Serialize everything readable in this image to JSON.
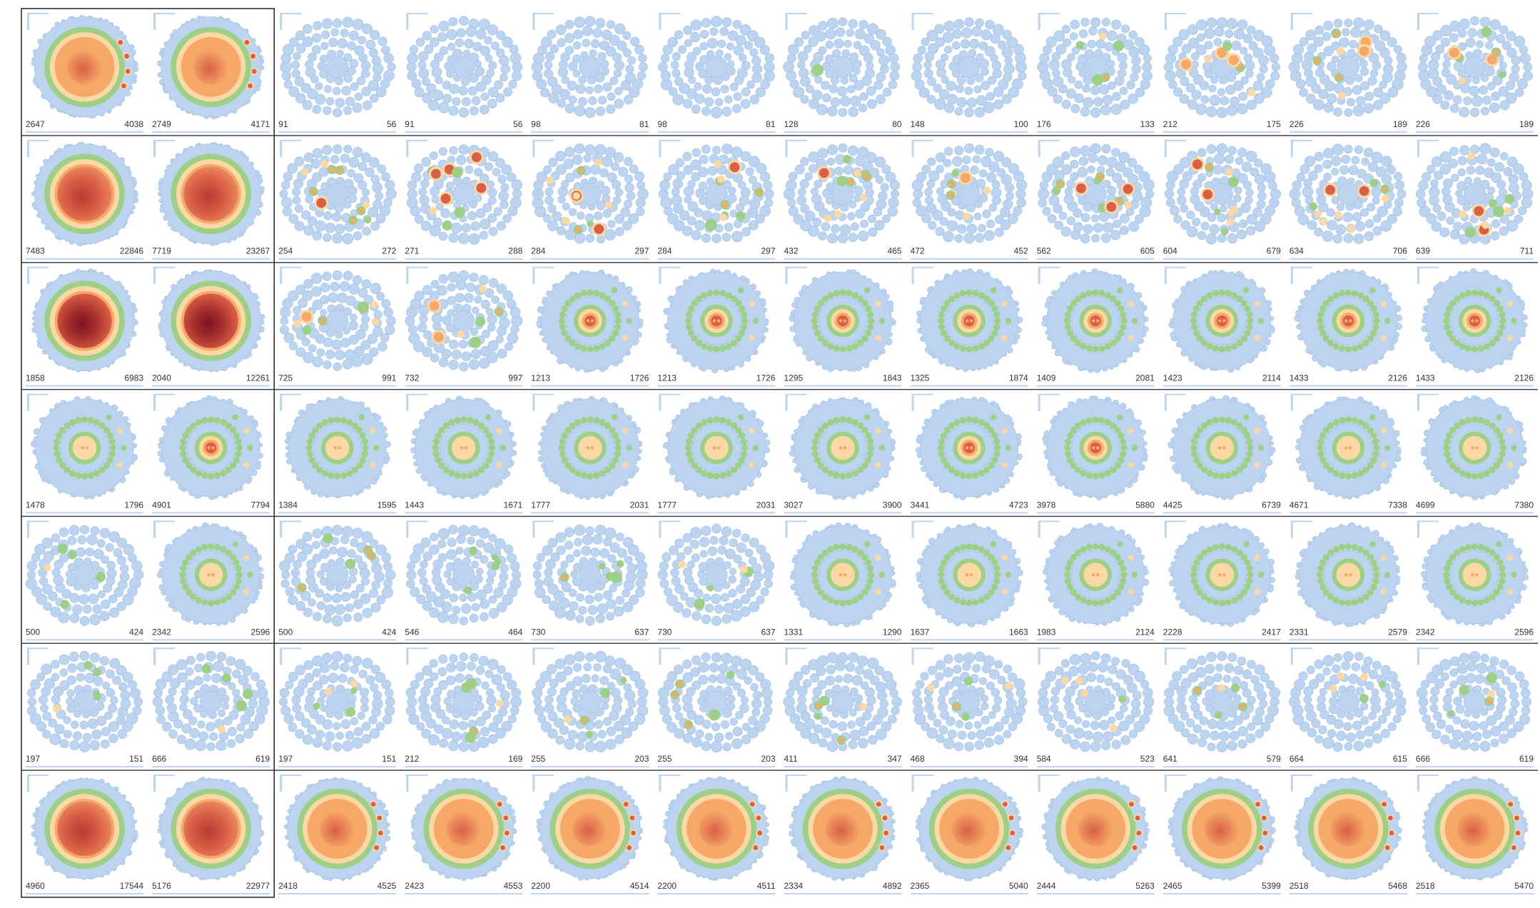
{
  "colors": {
    "blue": "#bcd4ef",
    "blue_stroke": "#a8c4e6",
    "green": "#9dd086",
    "peach": "#fbd8a4",
    "orange": "#f6a868",
    "red": "#d95f46",
    "darkred": "#a32c2c",
    "frame": "#222222",
    "separator": "#444444"
  },
  "rows": [
    {
      "cells": [
        {
          "style": "big",
          "level": 1,
          "left": "2647",
          "right": "4038"
        },
        {
          "style": "big",
          "level": 1,
          "left": "2749",
          "right": "4171"
        },
        {
          "style": "pack",
          "level": 0,
          "left": "91",
          "right": "56"
        },
        {
          "style": "pack",
          "level": 0,
          "left": "91",
          "right": "56"
        },
        {
          "style": "pack",
          "level": 0,
          "left": "98",
          "right": "81"
        },
        {
          "style": "pack",
          "level": 0,
          "left": "98",
          "right": "81"
        },
        {
          "style": "pack",
          "level": 1,
          "left": "128",
          "right": "80"
        },
        {
          "style": "pack",
          "level": 0,
          "left": "148",
          "right": "100"
        },
        {
          "style": "pack",
          "level": 2,
          "left": "176",
          "right": "133"
        },
        {
          "style": "pack",
          "level": 3,
          "left": "212",
          "right": "175"
        },
        {
          "style": "pack",
          "level": 3,
          "left": "226",
          "right": "189"
        },
        {
          "style": "pack",
          "level": 3,
          "left": "226",
          "right": "189"
        }
      ]
    },
    {
      "cells": [
        {
          "style": "big",
          "level": 3,
          "left": "7483",
          "right": "22846"
        },
        {
          "style": "big",
          "level": 3,
          "left": "7719",
          "right": "23267"
        },
        {
          "style": "pack",
          "level": 4,
          "left": "254",
          "right": "272"
        },
        {
          "style": "pack",
          "level": 4,
          "left": "271",
          "right": "288"
        },
        {
          "style": "pack",
          "level": 4,
          "left": "284",
          "right": "297"
        },
        {
          "style": "pack",
          "level": 4,
          "left": "284",
          "right": "297"
        },
        {
          "style": "pack",
          "level": 4,
          "left": "432",
          "right": "465"
        },
        {
          "style": "pack",
          "level": 3,
          "left": "472",
          "right": "452"
        },
        {
          "style": "pack",
          "level": 4,
          "left": "562",
          "right": "605"
        },
        {
          "style": "pack",
          "level": 4,
          "left": "604",
          "right": "679"
        },
        {
          "style": "pack",
          "level": 4,
          "left": "634",
          "right": "706"
        },
        {
          "style": "pack",
          "level": 4,
          "left": "639",
          "right": "711"
        }
      ]
    },
    {
      "cells": [
        {
          "style": "big",
          "level": 4,
          "left": "1858",
          "right": "6983"
        },
        {
          "style": "big",
          "level": 4,
          "left": "2040",
          "right": "12261"
        },
        {
          "style": "pack",
          "level": 3,
          "left": "725",
          "right": "991"
        },
        {
          "style": "pack",
          "level": 3,
          "left": "732",
          "right": "997"
        },
        {
          "style": "ring",
          "level": 2,
          "left": "1213",
          "right": "1726"
        },
        {
          "style": "ring",
          "level": 2,
          "left": "1213",
          "right": "1726"
        },
        {
          "style": "ring",
          "level": 2,
          "left": "1295",
          "right": "1843"
        },
        {
          "style": "ring",
          "level": 2,
          "left": "1325",
          "right": "1874"
        },
        {
          "style": "ring",
          "level": 2,
          "left": "1409",
          "right": "2081"
        },
        {
          "style": "ring",
          "level": 2,
          "left": "1423",
          "right": "2114"
        },
        {
          "style": "ring",
          "level": 2,
          "left": "1433",
          "right": "2126"
        },
        {
          "style": "ring",
          "level": 2,
          "left": "1433",
          "right": "2126"
        }
      ]
    },
    {
      "cells": [
        {
          "style": "ring",
          "level": 1,
          "left": "1478",
          "right": "1796"
        },
        {
          "style": "ring",
          "level": 2,
          "left": "4901",
          "right": "7794"
        },
        {
          "style": "ring",
          "level": 1,
          "left": "1384",
          "right": "1595"
        },
        {
          "style": "ring",
          "level": 1,
          "left": "1443",
          "right": "1671"
        },
        {
          "style": "ring",
          "level": 1,
          "left": "1777",
          "right": "2031"
        },
        {
          "style": "ring",
          "level": 1,
          "left": "1777",
          "right": "2031"
        },
        {
          "style": "ring",
          "level": 1,
          "left": "3027",
          "right": "3900"
        },
        {
          "style": "ring",
          "level": 2,
          "left": "3441",
          "right": "4723"
        },
        {
          "style": "ring",
          "level": 2,
          "left": "3978",
          "right": "5880"
        },
        {
          "style": "ring",
          "level": 1,
          "left": "4425",
          "right": "6739"
        },
        {
          "style": "ring",
          "level": 1,
          "left": "4671",
          "right": "7338"
        },
        {
          "style": "ring",
          "level": 1,
          "left": "4699",
          "right": "7380"
        }
      ]
    },
    {
      "cells": [
        {
          "style": "pack",
          "level": 2,
          "left": "500",
          "right": "424"
        },
        {
          "style": "ring",
          "level": 1,
          "left": "2342",
          "right": "2596"
        },
        {
          "style": "pack",
          "level": 2,
          "left": "500",
          "right": "424"
        },
        {
          "style": "pack",
          "level": 2,
          "left": "546",
          "right": "464"
        },
        {
          "style": "pack",
          "level": 2,
          "left": "730",
          "right": "637"
        },
        {
          "style": "pack",
          "level": 2,
          "left": "730",
          "right": "637"
        },
        {
          "style": "ring",
          "level": 1,
          "left": "1331",
          "right": "1290"
        },
        {
          "style": "ring",
          "level": 1,
          "left": "1637",
          "right": "1663"
        },
        {
          "style": "ring",
          "level": 1,
          "left": "1983",
          "right": "2124"
        },
        {
          "style": "ring",
          "level": 1,
          "left": "2228",
          "right": "2417"
        },
        {
          "style": "ring",
          "level": 1,
          "left": "2331",
          "right": "2579"
        },
        {
          "style": "ring",
          "level": 1,
          "left": "2342",
          "right": "2596"
        }
      ]
    },
    {
      "cells": [
        {
          "style": "pack",
          "level": 2,
          "left": "197",
          "right": "151"
        },
        {
          "style": "pack",
          "level": 2,
          "left": "666",
          "right": "619"
        },
        {
          "style": "pack",
          "level": 2,
          "left": "197",
          "right": "151"
        },
        {
          "style": "pack",
          "level": 2,
          "left": "212",
          "right": "169"
        },
        {
          "style": "pack",
          "level": 2,
          "left": "255",
          "right": "203"
        },
        {
          "style": "pack",
          "level": 2,
          "left": "255",
          "right": "203"
        },
        {
          "style": "pack",
          "level": 2,
          "left": "411",
          "right": "347"
        },
        {
          "style": "pack",
          "level": 2,
          "left": "468",
          "right": "394"
        },
        {
          "style": "pack",
          "level": 2,
          "left": "584",
          "right": "523"
        },
        {
          "style": "pack",
          "level": 2,
          "left": "641",
          "right": "579"
        },
        {
          "style": "pack",
          "level": 2,
          "left": "664",
          "right": "615"
        },
        {
          "style": "pack",
          "level": 2,
          "left": "666",
          "right": "619"
        }
      ]
    },
    {
      "cells": [
        {
          "style": "big",
          "level": 3,
          "left": "4960",
          "right": "17544"
        },
        {
          "style": "big",
          "level": 3,
          "left": "5176",
          "right": "22977"
        },
        {
          "style": "big",
          "level": 2,
          "left": "2418",
          "right": "4525"
        },
        {
          "style": "big",
          "level": 2,
          "left": "2423",
          "right": "4553"
        },
        {
          "style": "big",
          "level": 2,
          "left": "2200",
          "right": "4514"
        },
        {
          "style": "big",
          "level": 2,
          "left": "2200",
          "right": "4511"
        },
        {
          "style": "big",
          "level": 2,
          "left": "2334",
          "right": "4892"
        },
        {
          "style": "big",
          "level": 2,
          "left": "2365",
          "right": "5040"
        },
        {
          "style": "big",
          "level": 2,
          "left": "2444",
          "right": "5263"
        },
        {
          "style": "big",
          "level": 2,
          "left": "2465",
          "right": "5399"
        },
        {
          "style": "big",
          "level": 2,
          "left": "2518",
          "right": "5468"
        },
        {
          "style": "big",
          "level": 2,
          "left": "2518",
          "right": "5470"
        }
      ]
    }
  ]
}
